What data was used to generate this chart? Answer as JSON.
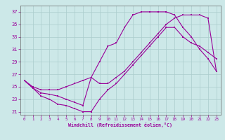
{
  "xlabel": "Windchill (Refroidissement éolien,°C)",
  "bg_color": "#cce8e8",
  "grid_color": "#aacccc",
  "line_color": "#990099",
  "ylim": [
    20.5,
    38
  ],
  "xlim": [
    -0.5,
    23.5
  ],
  "yticks": [
    21,
    23,
    25,
    27,
    29,
    31,
    33,
    35,
    37
  ],
  "xticks": [
    0,
    1,
    2,
    3,
    4,
    5,
    6,
    7,
    8,
    9,
    10,
    11,
    12,
    13,
    14,
    15,
    16,
    17,
    18,
    19,
    20,
    21,
    22,
    23
  ],
  "series1_x": [
    0,
    1,
    2,
    3,
    4,
    5,
    6,
    7,
    8,
    9,
    10,
    11,
    12,
    13,
    14,
    15,
    16,
    17,
    18,
    19,
    20,
    21,
    22,
    23
  ],
  "series1_y": [
    26.0,
    24.8,
    23.5,
    23.0,
    22.2,
    22.0,
    21.5,
    21.0,
    21.0,
    23.0,
    24.5,
    25.5,
    27.0,
    28.5,
    30.0,
    31.5,
    33.0,
    34.5,
    34.5,
    33.0,
    32.0,
    31.5,
    30.5,
    29.5
  ],
  "series2_x": [
    0,
    1,
    2,
    3,
    4,
    5,
    6,
    7,
    8,
    9,
    10,
    11,
    12,
    13,
    14,
    15,
    16,
    17,
    18,
    19,
    20,
    21,
    22,
    23
  ],
  "series2_y": [
    26.0,
    25.0,
    24.5,
    24.5,
    24.5,
    25.0,
    25.5,
    26.0,
    26.5,
    25.5,
    25.5,
    26.5,
    27.5,
    29.0,
    30.5,
    32.0,
    33.5,
    35.0,
    36.0,
    36.5,
    36.5,
    36.5,
    36.0,
    27.5
  ],
  "series3_x": [
    0,
    1,
    2,
    3,
    4,
    5,
    6,
    7,
    8,
    9,
    10,
    11,
    12,
    13,
    14,
    15,
    16,
    17,
    18,
    19,
    20,
    21,
    22,
    23
  ],
  "series3_y": [
    26.0,
    24.8,
    24.0,
    23.8,
    23.5,
    23.0,
    22.5,
    22.0,
    26.5,
    29.0,
    31.5,
    32.0,
    34.5,
    36.5,
    37.0,
    37.0,
    37.0,
    37.0,
    36.5,
    34.5,
    33.0,
    31.0,
    29.5,
    27.5
  ]
}
